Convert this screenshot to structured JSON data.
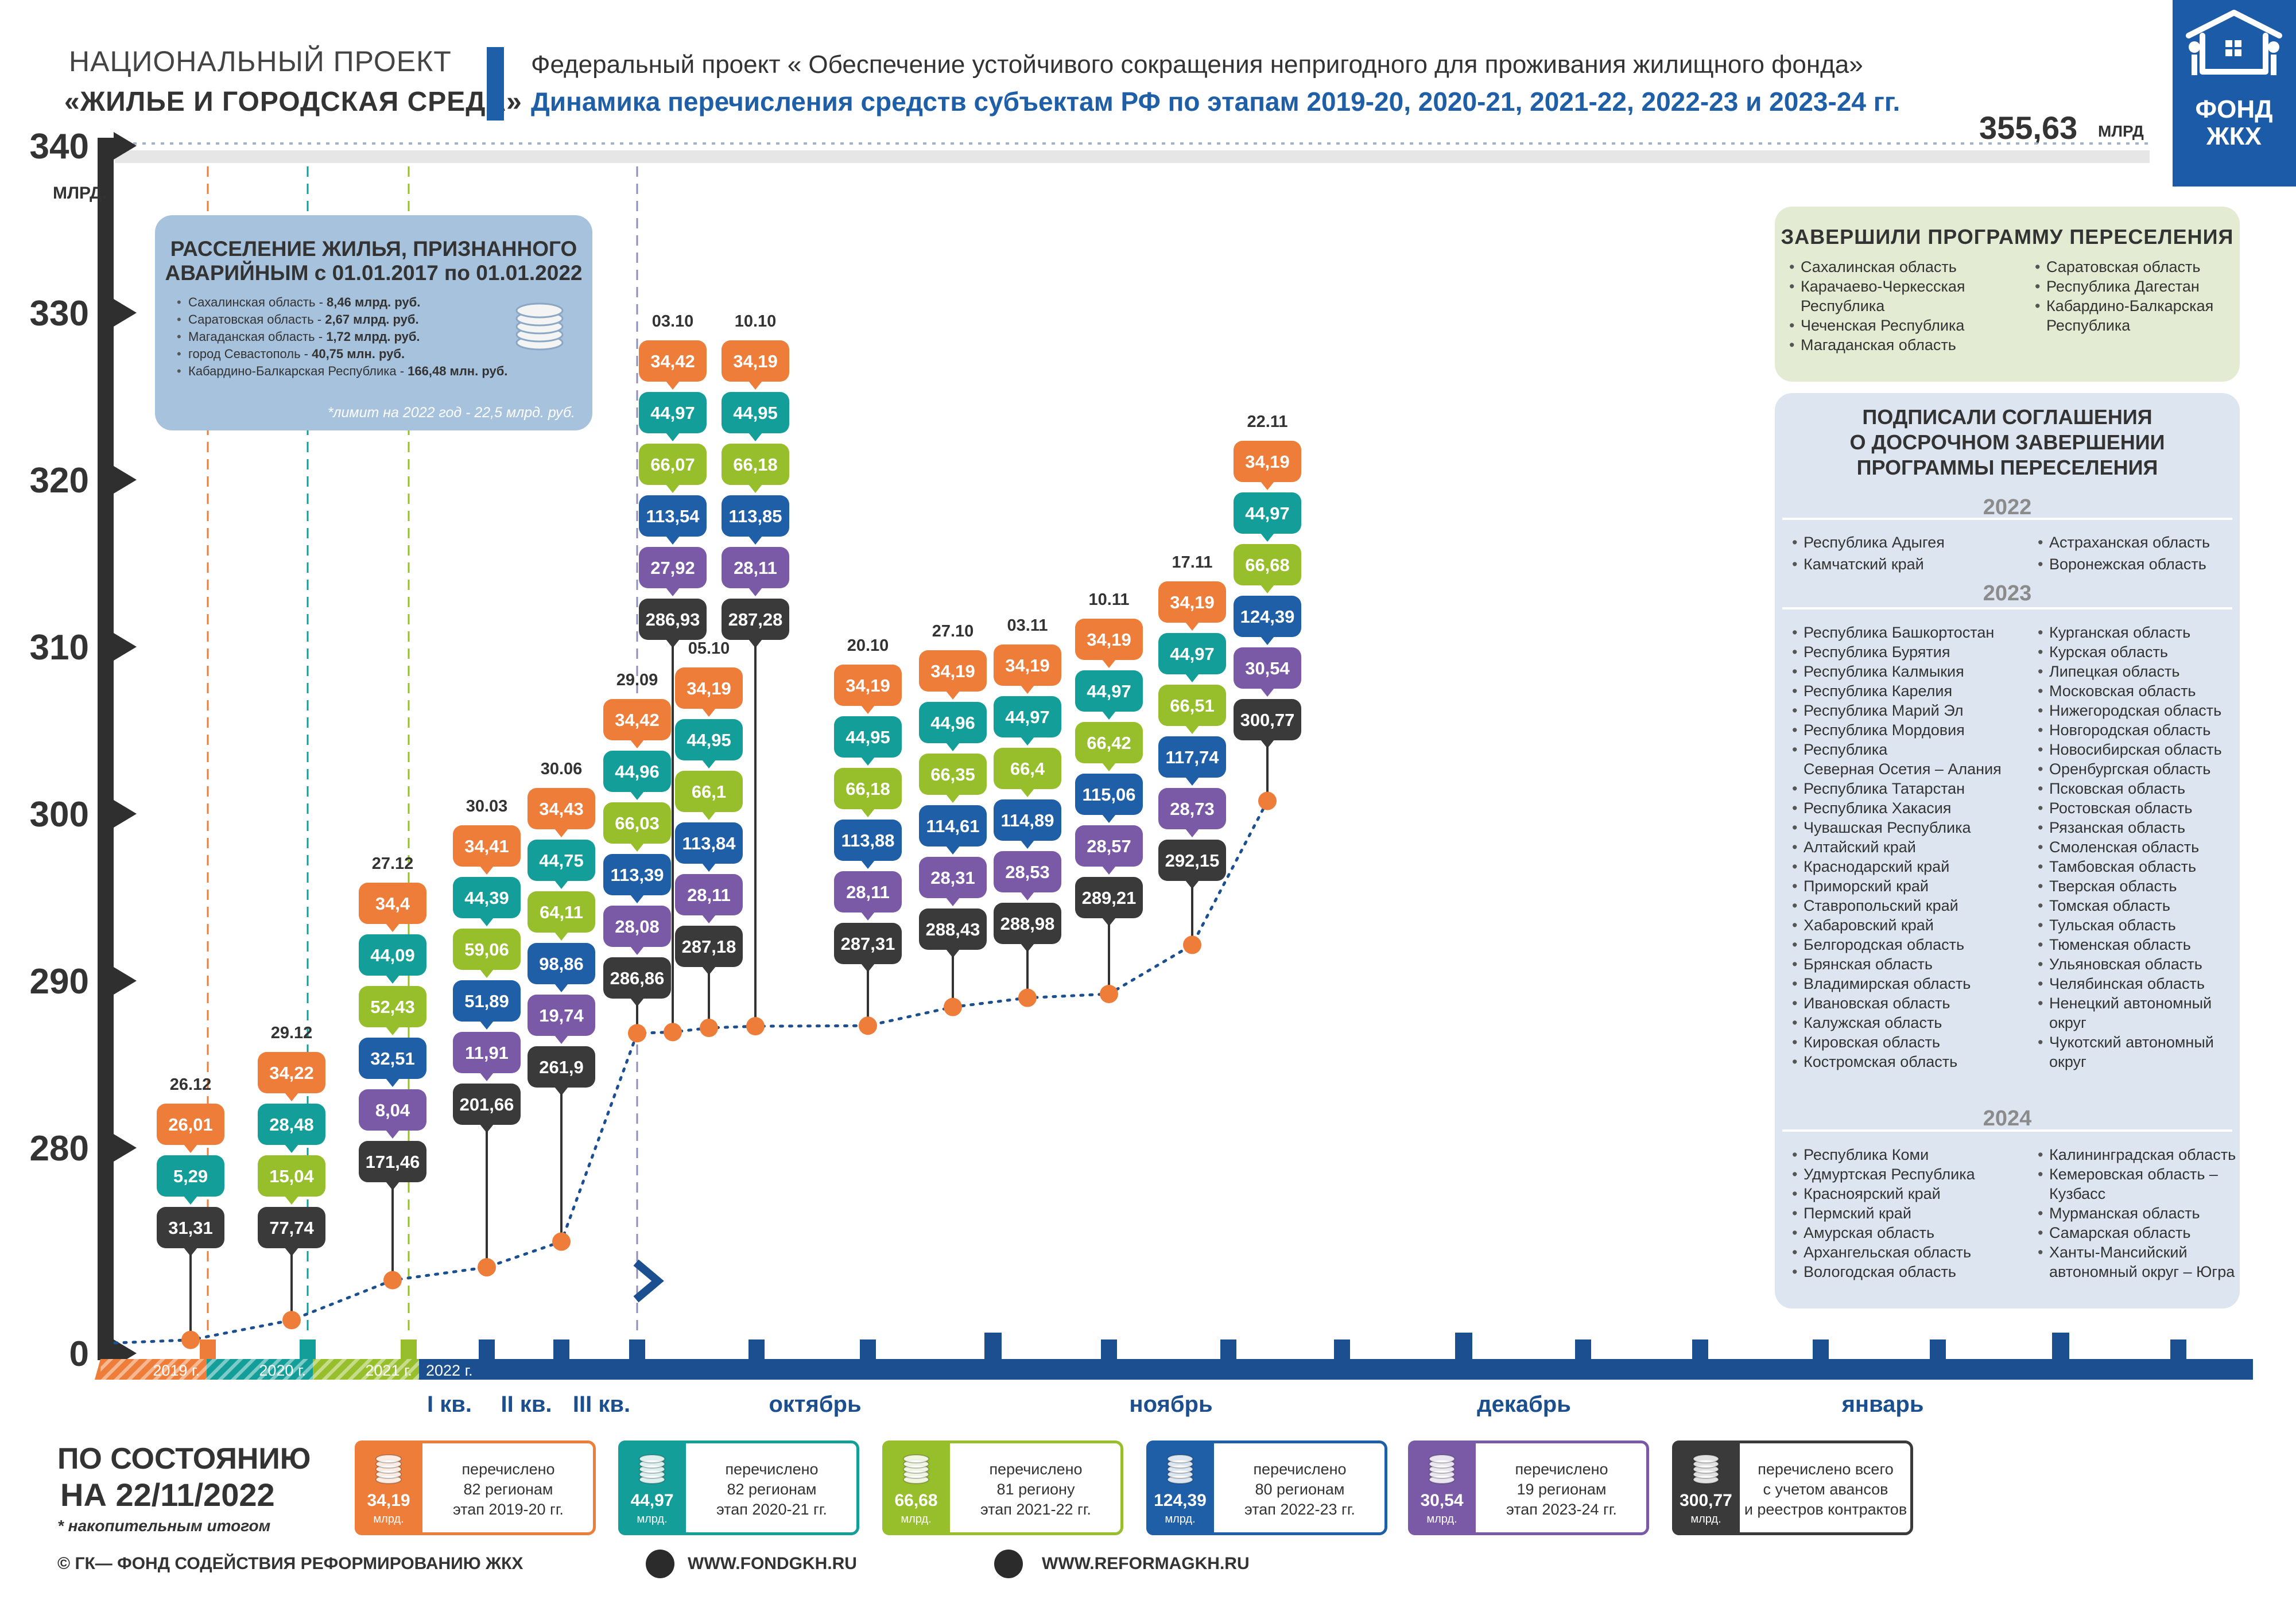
{
  "header": {
    "national_project": "НАЦИОНАЛЬНЫЙ ПРОЕКТ",
    "project_name": "«ЖИЛЬЕ И ГОРОДСКАЯ СРЕДА»",
    "federal_project": "Федеральный проект « Обеспечение устойчивого сокращения непригодного для проживания жилищного фонда»",
    "subtitle": "Динамика перечисления средств субъектам РФ по этапам 2019-20, 2020-21, 2021-22, 2022-23 и 2023-24 гг.",
    "total_value": "355,63",
    "total_unit": "МЛРД",
    "logo_line1": "ФОНД",
    "logo_line2": "ЖКХ"
  },
  "colors": {
    "orange": "#ef7d3a",
    "teal": "#139e99",
    "green": "#97bf2b",
    "blue": "#1f5fa8",
    "purple": "#7a5aa6",
    "black": "#3a3a3a",
    "navy": "#1c4f8f"
  },
  "resettle_panel": {
    "title_line1": "РАССЕЛЕНИЕ ЖИЛЬЯ, ПРИЗНАННОГО",
    "title_line2": "АВАРИЙНЫМ с 01.01.2017 по 01.01.2022",
    "items": [
      {
        "name": "Сахалинская область - ",
        "value": "8,46 млрд. руб."
      },
      {
        "name": "Саратовская область - ",
        "value": "2,67 млрд. руб."
      },
      {
        "name": "Магаданская область - ",
        "value": "1,72 млрд. руб."
      },
      {
        "name": "город Севастополь - ",
        "value": "40,75 млн. руб."
      },
      {
        "name": "Кабардино-Балкарская Республика - ",
        "value": "166,48 млн. руб."
      }
    ],
    "note": "*лимит на 2022 год - 22,5 млрд. руб."
  },
  "done_panel": {
    "title": "ЗАВЕРШИЛИ ПРОГРАММУ ПЕРЕСЕЛЕНИЯ",
    "col1": [
      "Сахалинская область",
      "Карачаево-Черкесская",
      "Республика",
      "Чеченская Республика",
      "Магаданская область"
    ],
    "col2": [
      "Саратовская область",
      "Республика Дагестан",
      "Кабардино-Балкарская",
      "Республика"
    ]
  },
  "sign_panel": {
    "title_line1": "ПОДПИСАЛИ СОГЛАШЕНИЯ",
    "title_line2": "О ДОСРОЧНОМ ЗАВЕРШЕНИИ",
    "title_line3": "ПРОГРАММЫ ПЕРЕСЕЛЕНИЯ",
    "year_2022": "2022",
    "y2022_col1": [
      "Республика Адыгея",
      "Камчатский край"
    ],
    "y2022_col2": [
      "Астраханская область",
      "Воронежская область"
    ],
    "year_2023": "2023",
    "y2023_col1": [
      "Республика Башкортостан",
      "Республика Бурятия",
      "Республика Калмыкия",
      "Республика Карелия",
      "Республика Марий Эл",
      "Республика Мордовия",
      "Республика",
      "Северная Осетия – Алания",
      "Республика Татарстан",
      "Республика Хакасия",
      "Чувашская Республика",
      "Алтайский край",
      "Краснодарский край",
      "Приморский край",
      "Ставропольский край",
      "Хабаровский край",
      "Белгородская область",
      "Брянская область",
      "Владимирская область",
      "Ивановская область",
      "Калужская область",
      "Кировская область",
      "Костромская область"
    ],
    "y2023_col2": [
      "Курганская область",
      "Курская область",
      "Липецкая область",
      "Московская область",
      "Нижегородская область",
      "Новгородская область",
      "Новосибирская область",
      "Оренбургская область",
      "Псковская область",
      "Ростовская область",
      "Рязанская область",
      "Смоленская область",
      "Тамбовская область",
      "Тверская область",
      "Томская область",
      "Тульская область",
      "Тюменская область",
      "Ульяновская область",
      "Челябинская область",
      "Ненецкий автономный",
      "округ",
      "Чукотский автономный",
      "округ"
    ],
    "year_2024": "2024",
    "y2024_col1": [
      "Республика Коми",
      "Удмуртская Республика",
      "Красноярский край",
      "Пермский край",
      "Амурская область",
      "Архангельская область",
      "Вологодская область"
    ],
    "y2024_col2": [
      "Калининградская область",
      "Кемеровская область –",
      "Кузбасс",
      "Мурманская область",
      "Самарская область",
      "Ханты-Мансийский",
      "автономный округ – Югра"
    ]
  },
  "chart_data": {
    "type": "bar",
    "title": "Динамика перечисления средств субъектам РФ по этапам 2019-20, 2020-21, 2021-22, 2022-23 и 2023-24 гг.",
    "ylabel": "МЛРД.",
    "y_ticks": [
      "0",
      "280",
      "290",
      "300",
      "310",
      "320",
      "330",
      "340"
    ],
    "y_tick_values": [
      0,
      280,
      290,
      300,
      310,
      320,
      330,
      340
    ],
    "ylim": [
      0,
      340
    ],
    "x_periods": [
      "2019 г.",
      "2020 г.",
      "2021 г.",
      "2022 г."
    ],
    "quarter_labels": [
      "I кв.",
      "II кв.",
      "III кв."
    ],
    "month_labels": [
      "октябрь",
      "ноябрь",
      "декабрь",
      "январь"
    ],
    "series_names": [
      "этап 2019-20 гг.",
      "этап 2020-21 гг.",
      "этап 2021-22 гг.",
      "этап 2022-23 гг.",
      "этап 2023-24 гг.",
      "всего с учетом авансов и реестров контрактов"
    ],
    "stacks": [
      {
        "date": "26.12",
        "cumulative": 31.31,
        "values": [
          "26,01",
          "5,29",
          "31,31"
        ],
        "colors": [
          "orange",
          "teal",
          "black"
        ]
      },
      {
        "date": "29.12",
        "cumulative": 77.74,
        "values": [
          "34,22",
          "28,48",
          "15,04",
          "77,74"
        ],
        "colors": [
          "orange",
          "teal",
          "green",
          "black"
        ]
      },
      {
        "date": "27.12",
        "cumulative": 171.46,
        "values": [
          "34,4",
          "44,09",
          "52,43",
          "32,51",
          "8,04",
          "171,46"
        ],
        "colors": [
          "orange",
          "teal",
          "green",
          "blue",
          "purple",
          "black"
        ]
      },
      {
        "date": "30.03",
        "cumulative": 201.66,
        "values": [
          "34,41",
          "44,39",
          "59,06",
          "51,89",
          "11,91",
          "201,66"
        ],
        "colors": [
          "orange",
          "teal",
          "green",
          "blue",
          "purple",
          "black"
        ]
      },
      {
        "date": "30.06",
        "cumulative": 261.9,
        "values": [
          "34,43",
          "44,75",
          "64,11",
          "98,86",
          "19,74",
          "261,9"
        ],
        "colors": [
          "orange",
          "teal",
          "green",
          "blue",
          "purple",
          "black"
        ]
      },
      {
        "date": "29.09",
        "cumulative": 286.86,
        "values": [
          "34,42",
          "44,96",
          "66,03",
          "113,39",
          "28,08",
          "286,86"
        ],
        "colors": [
          "orange",
          "teal",
          "green",
          "blue",
          "purple",
          "black"
        ]
      },
      {
        "date": "03.10",
        "cumulative": 286.93,
        "values": [
          "34,42",
          "44,97",
          "66,07",
          "113,54",
          "27,92",
          "286,93"
        ],
        "colors": [
          "orange",
          "teal",
          "green",
          "blue",
          "purple",
          "black"
        ]
      },
      {
        "date": "05.10",
        "cumulative": 287.18,
        "values": [
          "34,19",
          "44,95",
          "66,1",
          "113,84",
          "28,11",
          "287,18"
        ],
        "colors": [
          "orange",
          "teal",
          "green",
          "blue",
          "purple",
          "black"
        ]
      },
      {
        "date": "10.10",
        "cumulative": 287.28,
        "values": [
          "34,19",
          "44,95",
          "66,18",
          "113,85",
          "28,11",
          "287,28"
        ],
        "colors": [
          "orange",
          "teal",
          "green",
          "blue",
          "purple",
          "black"
        ]
      },
      {
        "date": "20.10",
        "cumulative": 287.31,
        "values": [
          "34,19",
          "44,95",
          "66,18",
          "113,88",
          "28,11",
          "287,31"
        ],
        "colors": [
          "orange",
          "teal",
          "green",
          "blue",
          "purple",
          "black"
        ]
      },
      {
        "date": "27.10",
        "cumulative": 288.43,
        "values": [
          "34,19",
          "44,96",
          "66,35",
          "114,61",
          "28,31",
          "288,43"
        ],
        "colors": [
          "orange",
          "teal",
          "green",
          "blue",
          "purple",
          "black"
        ]
      },
      {
        "date": "03.11",
        "cumulative": 288.98,
        "values": [
          "34,19",
          "44,97",
          "66,4",
          "114,89",
          "28,53",
          "288,98"
        ],
        "colors": [
          "orange",
          "teal",
          "green",
          "blue",
          "purple",
          "black"
        ]
      },
      {
        "date": "10.11",
        "cumulative": 289.21,
        "values": [
          "34,19",
          "44,97",
          "66,42",
          "115,06",
          "28,57",
          "289,21"
        ],
        "colors": [
          "orange",
          "teal",
          "green",
          "blue",
          "purple",
          "black"
        ]
      },
      {
        "date": "17.11",
        "cumulative": 292.15,
        "values": [
          "34,19",
          "44,97",
          "66,51",
          "117,74",
          "28,73",
          "292,15"
        ],
        "colors": [
          "orange",
          "teal",
          "green",
          "blue",
          "purple",
          "black"
        ]
      },
      {
        "date": "22.11",
        "cumulative": 300.77,
        "values": [
          "34,19",
          "44,97",
          "66,68",
          "124,39",
          "30,54",
          "300,77"
        ],
        "colors": [
          "orange",
          "teal",
          "green",
          "blue",
          "purple",
          "black"
        ]
      }
    ]
  },
  "legend": {
    "status_line1": "ПО СОСТОЯНИЮ",
    "status_line2": "НА 22/11/2022",
    "status_note": "* накопительным итогом",
    "unit": "млрд.",
    "items": [
      {
        "value": "34,19",
        "l1": "перечислено",
        "l2": "82 регионам",
        "l3": "этап 2019-20 гг.",
        "color": "orange"
      },
      {
        "value": "44,97",
        "l1": "перечислено",
        "l2": "82 регионам",
        "l3": "этап 2020-21 гг.",
        "color": "teal"
      },
      {
        "value": "66,68",
        "l1": "перечислено",
        "l2": "81 региону",
        "l3": "этап 2021-22 гг.",
        "color": "green"
      },
      {
        "value": "124,39",
        "l1": "перечислено",
        "l2": "80 регионам",
        "l3": "этап 2022-23 гг.",
        "color": "blue"
      },
      {
        "value": "30,54",
        "l1": "перечислено",
        "l2": "19 регионам",
        "l3": "этап 2023-24 гг.",
        "color": "purple"
      },
      {
        "value": "300,77",
        "l1": "перечислено всего",
        "l2": "с учетом авансов",
        "l3": "и реестров контрактов",
        "color": "black"
      }
    ]
  },
  "footer": {
    "copyright": "© ГК— ФОНД СОДЕЙСТВИЯ РЕФОРМИРОВАНИЮ ЖКХ",
    "site1": "WWW.FONDGKH.RU",
    "site2": "WWW.REFORMAGKH.RU"
  }
}
